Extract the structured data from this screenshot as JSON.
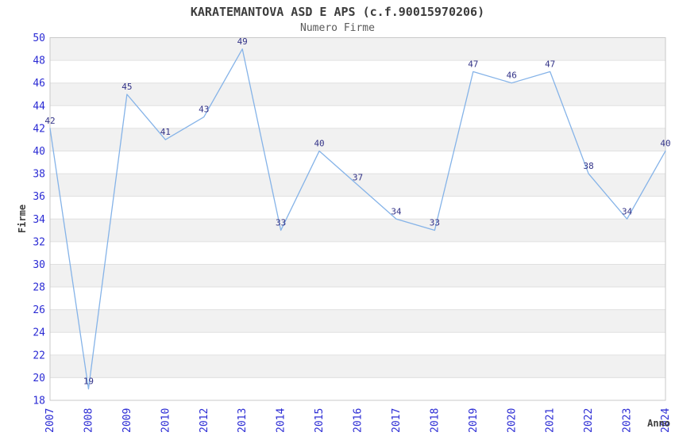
{
  "chart_data": {
    "type": "line",
    "title": "KARATEMANTOVA ASD E APS (c.f.90015970206)",
    "subtitle": "Numero Firme",
    "xlabel": "Anno",
    "ylabel": "Firme",
    "categories": [
      "2007",
      "2008",
      "2009",
      "2010",
      "2012",
      "2013",
      "2014",
      "2015",
      "2016",
      "2017",
      "2018",
      "2019",
      "2020",
      "2021",
      "2022",
      "2023",
      "2024"
    ],
    "values": [
      42,
      19,
      45,
      41,
      43,
      49,
      33,
      40,
      37,
      34,
      33,
      47,
      46,
      47,
      38,
      34,
      40
    ],
    "ylim": [
      18,
      50
    ],
    "ytick_step": 2,
    "grid": "alternating-horizontal-bands",
    "legend": "none",
    "markers": "none",
    "point_labels_shown": true,
    "colors": {
      "line": "#85b3e8",
      "axis_tick_labels": "#2b2bd4",
      "point_labels": "#333388",
      "band_gray": "#f1f1f1",
      "band_white": "#ffffff",
      "gridline": "#e0e0e0",
      "plot_border": "#c9c9c9",
      "background": "#ffffff",
      "title_text": "#3c3c3c",
      "subtitle_text": "#5a5a5a",
      "axis_title_text": "#404040"
    }
  }
}
